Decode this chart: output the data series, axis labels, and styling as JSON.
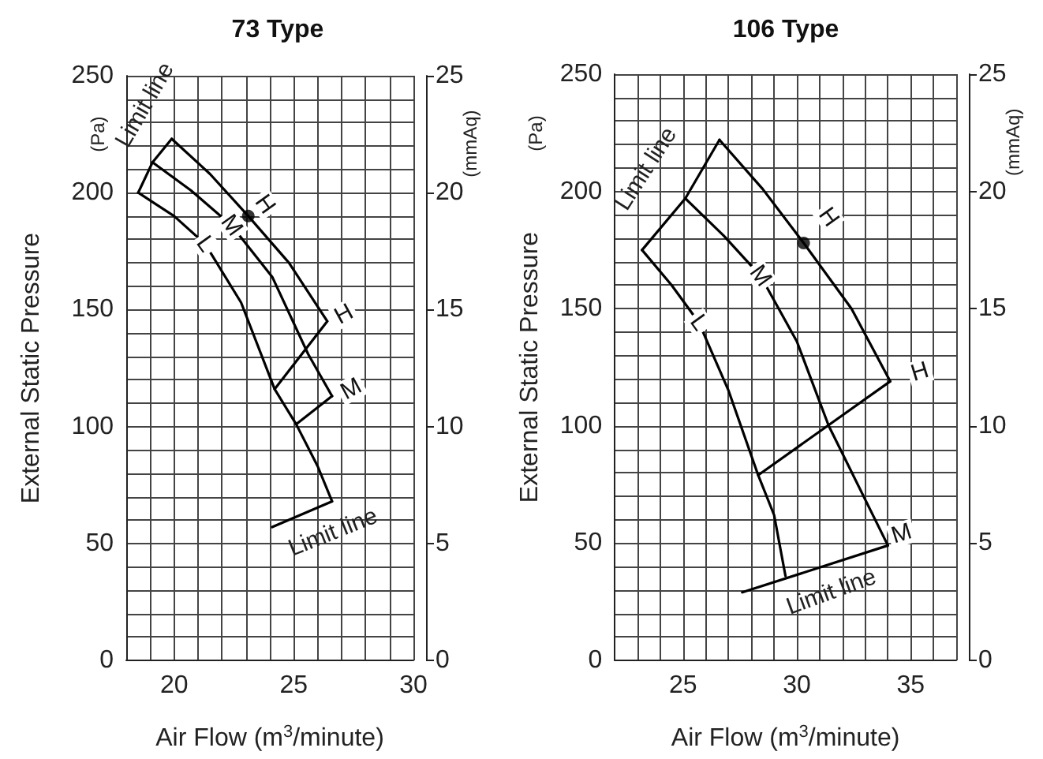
{
  "chart_data": [
    {
      "type": "line",
      "title": "73 Type",
      "xlabel": "Air Flow (m$^{3}$/minute)",
      "ylabel": "External Static Pressure",
      "y2label": "(mmAq)",
      "xlim": [
        18,
        30
      ],
      "xticks": [
        {
          "value": 18,
          "label": null
        },
        {
          "value": 19,
          "label": null
        },
        20,
        {
          "value": 21,
          "label": null
        },
        {
          "value": 22,
          "label": null
        },
        {
          "value": 23,
          "label": null
        },
        {
          "value": 24,
          "label": null
        },
        25,
        {
          "value": 26,
          "label": null
        },
        {
          "value": 27,
          "label": null
        },
        {
          "value": 28,
          "label": null
        },
        {
          "value": 29,
          "label": null
        },
        30
      ],
      "ylim": [
        0,
        250
      ],
      "yticks": [
        0,
        {
          "value": 10,
          "label": null
        },
        {
          "value": 20,
          "label": null
        },
        {
          "value": 30,
          "label": null
        },
        {
          "value": 40,
          "label": null
        },
        50,
        {
          "value": 60,
          "label": null
        },
        {
          "value": 70,
          "label": null
        },
        {
          "value": 80,
          "label": null
        },
        {
          "value": 90,
          "label": null
        },
        100,
        {
          "value": 110,
          "label": null
        },
        {
          "value": 120,
          "label": null
        },
        {
          "value": 130,
          "label": null
        },
        {
          "value": 140,
          "label": null
        },
        150,
        {
          "value": 160,
          "label": null
        },
        {
          "value": 170,
          "label": null
        },
        {
          "value": 180,
          "label": null
        },
        {
          "value": 190,
          "label": null
        },
        200,
        {
          "value": 210,
          "label": null
        },
        {
          "value": 220,
          "label": null
        },
        {
          "value": 230,
          "label": null
        },
        {
          "value": 240,
          "label": null
        },
        250
      ],
      "y2lim": [
        0,
        25
      ],
      "y2ticks": [
        0,
        5,
        10,
        15,
        20,
        25
      ],
      "grid": true,
      "marker": "none",
      "line_style": "solid",
      "series": [
        {
          "type": "line",
          "color": "#000000",
          "x": [
            18.5,
            19.1,
            19.9
          ],
          "values": [
            200,
            213,
            223
          ]
        },
        {
          "type": "line",
          "color": "#000000",
          "x": [
            19.9,
            21.5,
            23.1,
            24.8,
            26.4
          ],
          "values": [
            223,
            208,
            190,
            170,
            145
          ]
        },
        {
          "type": "line",
          "color": "#000000",
          "x": [
            19.1,
            20.7,
            22.4,
            24.1,
            25.6,
            26.6
          ],
          "values": [
            213,
            201,
            186,
            164,
            131,
            113
          ]
        },
        {
          "type": "line",
          "color": "#000000",
          "x": [
            18.5,
            20.0,
            21.3,
            22.8,
            24.2,
            25.1,
            26.0,
            26.6
          ],
          "values": [
            200,
            190,
            178,
            153,
            116,
            101,
            83,
            68
          ]
        },
        {
          "type": "line",
          "color": "#000000",
          "x": [
            26.4,
            24.2
          ],
          "values": [
            145,
            116
          ]
        },
        {
          "type": "line",
          "color": "#000000",
          "x": [
            26.6,
            25.1
          ],
          "values": [
            113,
            101
          ]
        },
        {
          "type": "line",
          "color": "#000000",
          "x": [
            26.6,
            24.1
          ],
          "values": [
            68,
            57
          ]
        },
        {
          "type": "scatter",
          "color": "#000000",
          "marker": "circle",
          "x": [
            23.1
          ],
          "values": [
            190
          ]
        }
      ],
      "annotations": [
        "(Pa)",
        "Limit line",
        {
          "text": "H",
          "x": 23.8,
          "y": 195
        },
        {
          "text": "M",
          "x": 22.4,
          "y": 186
        },
        {
          "text": "L",
          "x": 21.3,
          "y": 178
        },
        {
          "text": "H",
          "x": 27.1,
          "y": 148
        },
        {
          "text": "M",
          "x": 27.4,
          "y": 116
        },
        "Limit line"
      ]
    },
    {
      "type": "line",
      "title": "106 Type",
      "xlabel": "Air Flow (m$^{3}$/minute)",
      "ylabel": "External Static Pressure",
      "y2label": "(mmAq)",
      "xlim": [
        22,
        37
      ],
      "xticks": [
        {
          "value": 22,
          "label": null
        },
        {
          "value": 23,
          "label": null
        },
        {
          "value": 24,
          "label": null
        },
        25,
        {
          "value": 26,
          "label": null
        },
        {
          "value": 27,
          "label": null
        },
        {
          "value": 28,
          "label": null
        },
        {
          "value": 29,
          "label": null
        },
        30,
        {
          "value": 31,
          "label": null
        },
        {
          "value": 32,
          "label": null
        },
        {
          "value": 33,
          "label": null
        },
        {
          "value": 34,
          "label": null
        },
        35,
        {
          "value": 36,
          "label": null
        },
        {
          "value": 37,
          "label": null
        }
      ],
      "ylim": [
        0,
        250
      ],
      "yticks": [
        0,
        {
          "value": 10,
          "label": null
        },
        {
          "value": 20,
          "label": null
        },
        {
          "value": 30,
          "label": null
        },
        {
          "value": 40,
          "label": null
        },
        50,
        {
          "value": 60,
          "label": null
        },
        {
          "value": 70,
          "label": null
        },
        {
          "value": 80,
          "label": null
        },
        {
          "value": 90,
          "label": null
        },
        100,
        {
          "value": 110,
          "label": null
        },
        {
          "value": 120,
          "label": null
        },
        {
          "value": 130,
          "label": null
        },
        {
          "value": 140,
          "label": null
        },
        150,
        {
          "value": 160,
          "label": null
        },
        {
          "value": 170,
          "label": null
        },
        {
          "value": 180,
          "label": null
        },
        {
          "value": 190,
          "label": null
        },
        200,
        {
          "value": 210,
          "label": null
        },
        {
          "value": 220,
          "label": null
        },
        {
          "value": 230,
          "label": null
        },
        {
          "value": 240,
          "label": null
        },
        250
      ],
      "y2lim": [
        0,
        25
      ],
      "y2ticks": [
        0,
        5,
        10,
        15,
        20,
        25
      ],
      "grid": true,
      "marker": "none",
      "line_style": "solid",
      "series": [
        {
          "type": "line",
          "color": "#000000",
          "x": [
            23.2,
            25.1,
            26.6
          ],
          "values": [
            175,
            197,
            222
          ]
        },
        {
          "type": "line",
          "color": "#000000",
          "x": [
            26.6,
            28.5,
            30.3,
            32.4,
            34.1
          ],
          "values": [
            222,
            201,
            178,
            150,
            119
          ]
        },
        {
          "type": "line",
          "color": "#000000",
          "x": [
            25.1,
            26.8,
            28.4,
            30.0,
            31.4,
            34.0
          ],
          "values": [
            197,
            181,
            164,
            136,
            100,
            49
          ]
        },
        {
          "type": "line",
          "color": "#000000",
          "x": [
            23.2,
            24.5,
            25.7,
            27.0,
            28.3,
            29.0,
            29.5
          ],
          "values": [
            175,
            160,
            144,
            115,
            79,
            62,
            36
          ]
        },
        {
          "type": "line",
          "color": "#000000",
          "x": [
            34.1,
            28.3
          ],
          "values": [
            119,
            79
          ]
        },
        {
          "type": "line",
          "color": "#000000",
          "x": [
            34.0,
            27.6
          ],
          "values": [
            49,
            29
          ]
        },
        {
          "type": "scatter",
          "color": "#000000",
          "marker": "circle",
          "x": [
            30.3
          ],
          "values": [
            178
          ]
        }
      ],
      "annotations": [
        "(Pa)",
        "Limit line",
        {
          "text": "H",
          "x": 31.4,
          "y": 189
        },
        {
          "text": "M",
          "x": 28.4,
          "y": 164
        },
        {
          "text": "L",
          "x": 25.7,
          "y": 144
        },
        {
          "text": "H",
          "x": 35.4,
          "y": 123
        },
        {
          "text": "M",
          "x": 34.6,
          "y": 54
        },
        "Limit line"
      ]
    }
  ]
}
